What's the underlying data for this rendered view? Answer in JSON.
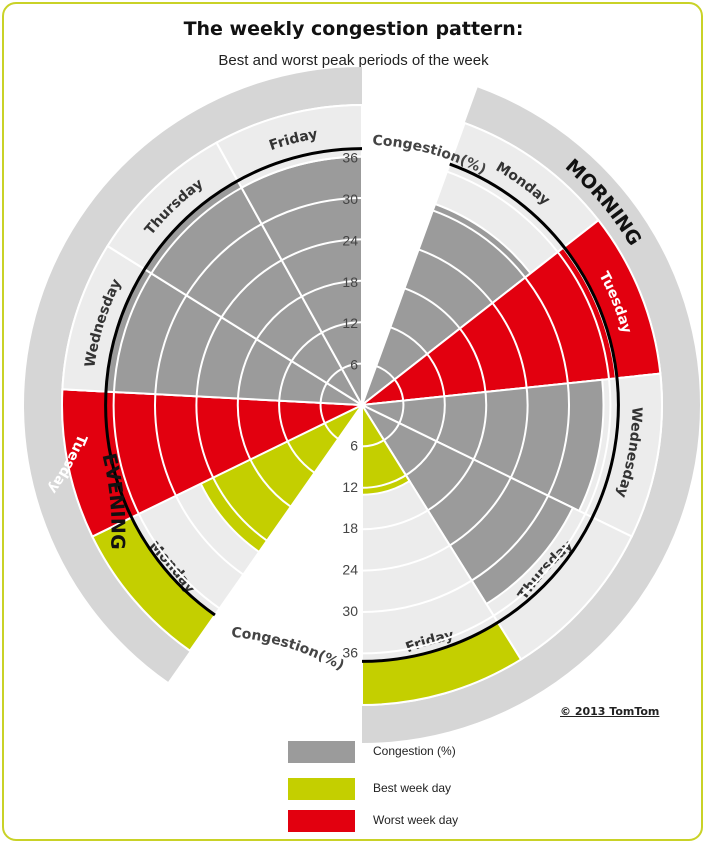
{
  "chart_data": {
    "type": "radial-bar",
    "title": "The weekly congestion pattern:",
    "subtitle": "Best and worst peak periods of the week",
    "axis_label": "Congestion(%)",
    "axis_ticks": [
      6,
      12,
      18,
      24,
      30,
      36
    ],
    "rlim": [
      0,
      36
    ],
    "groups": [
      {
        "name": "MORNING",
        "days": [
          {
            "day": "Monday",
            "value": 31,
            "category": "congestion"
          },
          {
            "day": "Tuesday",
            "value": 37,
            "category": "worst"
          },
          {
            "day": "Wednesday",
            "value": 35,
            "category": "congestion"
          },
          {
            "day": "Thursday",
            "value": 34,
            "category": "congestion"
          },
          {
            "day": "Friday",
            "value": 13,
            "category": "best"
          }
        ]
      },
      {
        "name": "EVENING",
        "days": [
          {
            "day": "Monday",
            "value": 26,
            "category": "best"
          },
          {
            "day": "Tuesday",
            "value": 42,
            "category": "worst"
          },
          {
            "day": "Wednesday",
            "value": 42,
            "category": "congestion"
          },
          {
            "day": "Thursday",
            "value": 42,
            "category": "congestion"
          },
          {
            "day": "Friday",
            "value": 36,
            "category": "congestion"
          }
        ]
      }
    ],
    "legend": [
      {
        "label": "Congestion (%)",
        "color": "#9b9b9b"
      },
      {
        "label": "Best week day",
        "color": "#c4cf00"
      },
      {
        "label": "Worst week day",
        "color": "#e2000f"
      }
    ],
    "legend_position": "bottom"
  },
  "copyright": "© 2013 TomTom",
  "colors": {
    "congestion": "#9b9b9b",
    "best": "#c4cf00",
    "worst": "#e2000f",
    "track": "#ececec",
    "outer_band": "#d6d6d6",
    "frame": "#c9d227"
  }
}
